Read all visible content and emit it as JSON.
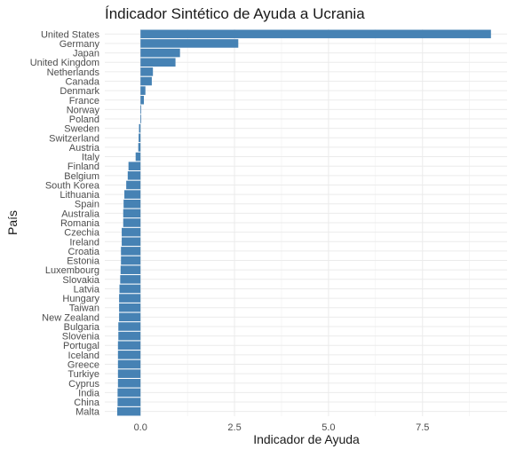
{
  "chart_data": {
    "type": "bar",
    "orientation": "horizontal",
    "title": "Índicador Sintético de Ayuda a Ucrania",
    "xlabel": "Indicador de Ayuda",
    "ylabel": "País",
    "xlim": [
      -0.95,
      9.75
    ],
    "xticks": [
      0,
      2.5,
      5,
      7.5
    ],
    "xtick_labels": [
      "0.0",
      "2.5",
      "5.0",
      "7.5"
    ],
    "grid": true,
    "bar_color": "#4682B4",
    "categories": [
      "United States",
      "Germany",
      "Japan",
      "United Kingdom",
      "Netherlands",
      "Canada",
      "Denmark",
      "France",
      "Norway",
      "Poland",
      "Sweden",
      "Switzerland",
      "Austria",
      "Italy",
      "Finland",
      "Belgium",
      "South Korea",
      "Lithuania",
      "Spain",
      "Australia",
      "Romania",
      "Czechia",
      "Ireland",
      "Croatia",
      "Estonia",
      "Luxembourg",
      "Slovakia",
      "Latvia",
      "Hungary",
      "Taiwan",
      "New Zealand",
      "Bulgaria",
      "Slovenia",
      "Portugal",
      "Iceland",
      "Greece",
      "Turkiye",
      "Cyprus",
      "India",
      "China",
      "Malta"
    ],
    "values": [
      9.32,
      2.6,
      1.05,
      0.93,
      0.33,
      0.3,
      0.13,
      0.09,
      0.01,
      0.01,
      -0.04,
      -0.05,
      -0.06,
      -0.13,
      -0.32,
      -0.34,
      -0.38,
      -0.43,
      -0.45,
      -0.46,
      -0.46,
      -0.5,
      -0.5,
      -0.52,
      -0.52,
      -0.53,
      -0.54,
      -0.56,
      -0.57,
      -0.57,
      -0.57,
      -0.59,
      -0.59,
      -0.6,
      -0.6,
      -0.6,
      -0.6,
      -0.6,
      -0.61,
      -0.61,
      -0.62
    ]
  }
}
